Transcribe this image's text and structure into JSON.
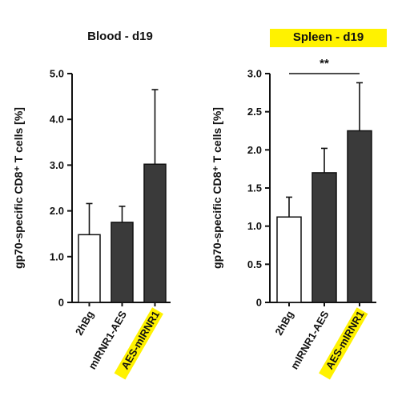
{
  "chart_data": [
    {
      "type": "bar",
      "title": "Blood - d19",
      "title_highlight": false,
      "ylabel": "gp70-specific CD8⁺ T cells [%]",
      "ylim": [
        0,
        5.0
      ],
      "yticks": [
        "0",
        "1.0",
        "2.0",
        "3.0",
        "4.0",
        "5.0"
      ],
      "categories": [
        "2hBg",
        "mIRNR1-AES",
        "AES-mIRNR1"
      ],
      "highlighted_category": "AES-mIRNR1",
      "values": [
        1.48,
        1.75,
        3.02
      ],
      "error_upper": [
        2.16,
        2.1,
        4.65
      ],
      "bar_colors": [
        "#ffffff",
        "#3a3a3a",
        "#3a3a3a"
      ],
      "significance": null
    },
    {
      "type": "bar",
      "title": "Spleen - d19",
      "title_highlight": true,
      "ylabel": "gp70-specific CD8⁺ T cells [%]",
      "ylim": [
        0,
        3.0
      ],
      "yticks": [
        "0",
        "0.5",
        "1.0",
        "1.5",
        "2.0",
        "2.5",
        "3.0"
      ],
      "categories": [
        "2hBg",
        "mIRNR1-AES",
        "AES-mIRNR1"
      ],
      "highlighted_category": "AES-mIRNR1",
      "values": [
        1.12,
        1.7,
        2.25
      ],
      "error_upper": [
        1.38,
        2.02,
        2.88
      ],
      "bar_colors": [
        "#ffffff",
        "#3a3a3a",
        "#3a3a3a"
      ],
      "significance": {
        "from": 0,
        "to": 2,
        "label": "**"
      }
    }
  ],
  "highlight_color": "#fff200"
}
